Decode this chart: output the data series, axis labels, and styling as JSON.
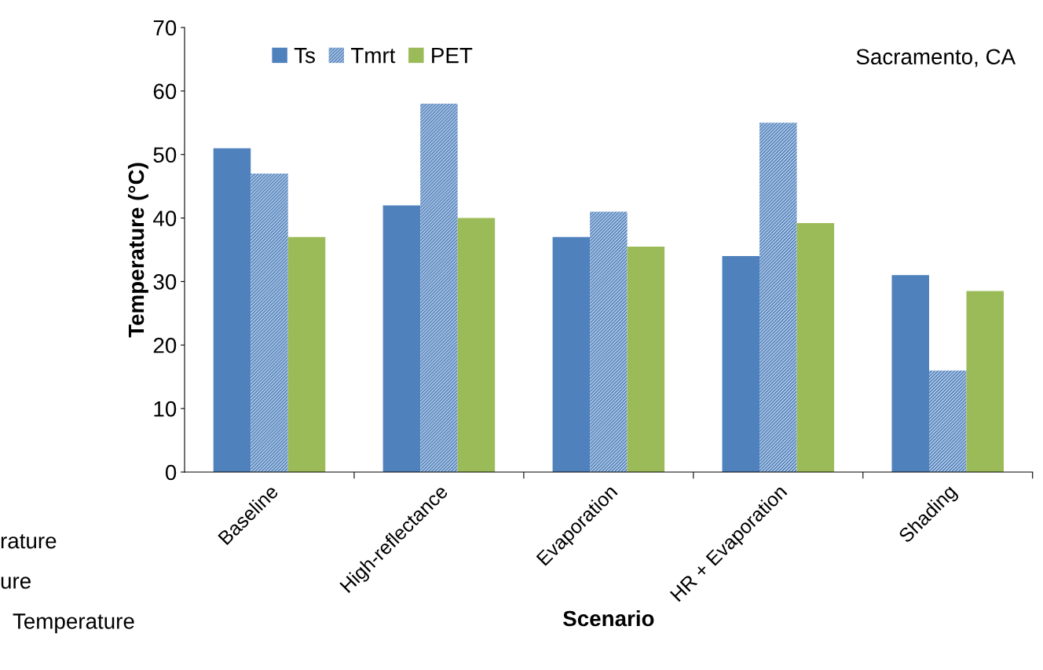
{
  "chart_data": {
    "type": "bar",
    "xlabel": "Scenario",
    "ylabel": "Temperature (°C)",
    "categories": [
      "Baseline",
      "High-reflectance",
      "Evaporation",
      "HR + Evaporation",
      "Shading"
    ],
    "series": [
      {
        "name": "Ts",
        "color": "#4f81bd",
        "values": [
          51,
          42,
          37,
          34,
          31
        ]
      },
      {
        "name": "Tmrt",
        "color": "#4f81bd",
        "values": [
          47,
          58,
          41,
          55,
          16
        ]
      },
      {
        "name": "PET",
        "color": "#9bbb59",
        "values": [
          37,
          40,
          35.5,
          39.2,
          28.5
        ]
      }
    ],
    "ylim": [
      0,
      70
    ],
    "yticks": [
      0,
      10,
      20,
      30,
      40,
      50,
      60,
      70
    ],
    "grid": false,
    "legend": "top left",
    "annotations": [
      "Sacramento, CA",
      "rature",
      "ure",
      "Temperature"
    ]
  }
}
